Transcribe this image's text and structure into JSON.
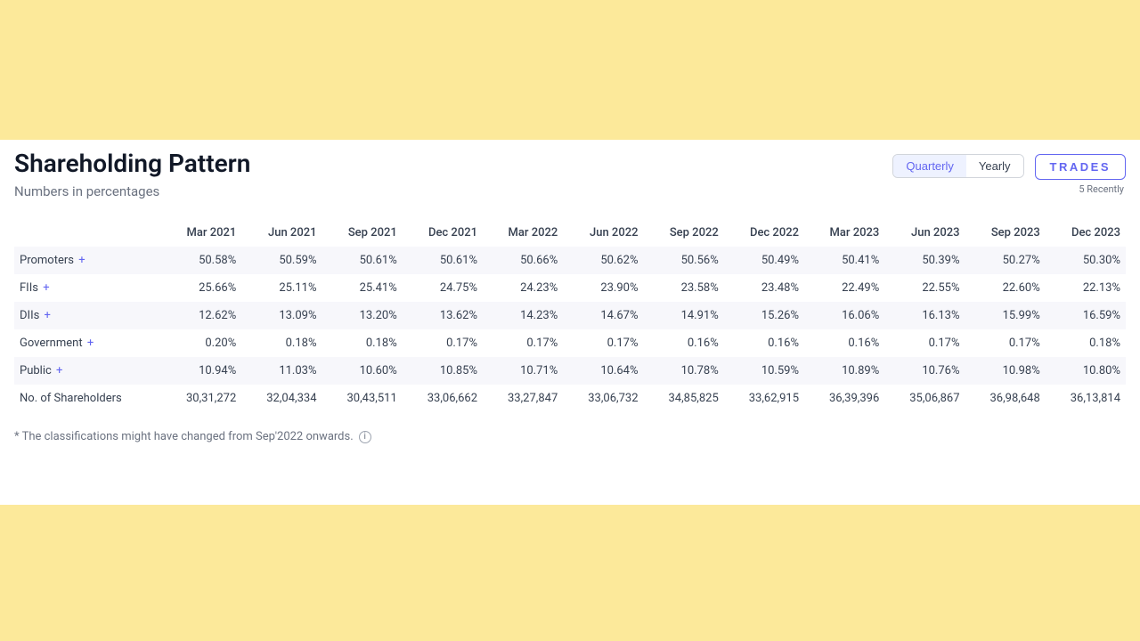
{
  "colors": {
    "page_bg": "#fce99a",
    "card_bg": "#ffffff",
    "title_text": "#111827",
    "muted_text": "#6b7280",
    "body_text": "#374151",
    "accent": "#6366f1",
    "accent_bg": "#eef2ff",
    "border": "#d1d5db",
    "row_striped": "#f7f7fb"
  },
  "title": "Shareholding Pattern",
  "subtitle": "Numbers in percentages",
  "segmented": {
    "quarterly": "Quarterly",
    "yearly": "Yearly",
    "active_index": 0
  },
  "trades": {
    "label": "TRADES",
    "note": "5 Recently"
  },
  "table": {
    "columns": [
      "Mar 2021",
      "Jun 2021",
      "Sep 2021",
      "Dec 2021",
      "Mar 2022",
      "Jun 2022",
      "Sep 2022",
      "Dec 2022",
      "Mar 2023",
      "Jun 2023",
      "Sep 2023",
      "Dec 2023"
    ],
    "rows": [
      {
        "label": "Promoters",
        "expandable": true,
        "striped": true,
        "values": [
          "50.58%",
          "50.59%",
          "50.61%",
          "50.61%",
          "50.66%",
          "50.62%",
          "50.56%",
          "50.49%",
          "50.41%",
          "50.39%",
          "50.27%",
          "50.30%"
        ]
      },
      {
        "label": "FIIs",
        "expandable": true,
        "striped": false,
        "values": [
          "25.66%",
          "25.11%",
          "25.41%",
          "24.75%",
          "24.23%",
          "23.90%",
          "23.58%",
          "23.48%",
          "22.49%",
          "22.55%",
          "22.60%",
          "22.13%"
        ]
      },
      {
        "label": "DIIs",
        "expandable": true,
        "striped": true,
        "values": [
          "12.62%",
          "13.09%",
          "13.20%",
          "13.62%",
          "14.23%",
          "14.67%",
          "14.91%",
          "15.26%",
          "16.06%",
          "16.13%",
          "15.99%",
          "16.59%"
        ]
      },
      {
        "label": "Government",
        "expandable": true,
        "striped": false,
        "values": [
          "0.20%",
          "0.18%",
          "0.18%",
          "0.17%",
          "0.17%",
          "0.17%",
          "0.16%",
          "0.16%",
          "0.16%",
          "0.17%",
          "0.17%",
          "0.18%"
        ]
      },
      {
        "label": "Public",
        "expandable": true,
        "striped": true,
        "values": [
          "10.94%",
          "11.03%",
          "10.60%",
          "10.85%",
          "10.71%",
          "10.64%",
          "10.78%",
          "10.59%",
          "10.89%",
          "10.76%",
          "10.98%",
          "10.80%"
        ]
      },
      {
        "label": "No. of Shareholders",
        "expandable": false,
        "striped": false,
        "values": [
          "30,31,272",
          "32,04,334",
          "30,43,511",
          "33,06,662",
          "33,27,847",
          "33,06,732",
          "34,85,825",
          "33,62,915",
          "36,39,396",
          "35,06,867",
          "36,98,648",
          "36,13,814"
        ]
      }
    ]
  },
  "footnote": "* The classifications might have changed from Sep'2022 onwards.",
  "info_glyph": "i",
  "plus_glyph": "+"
}
